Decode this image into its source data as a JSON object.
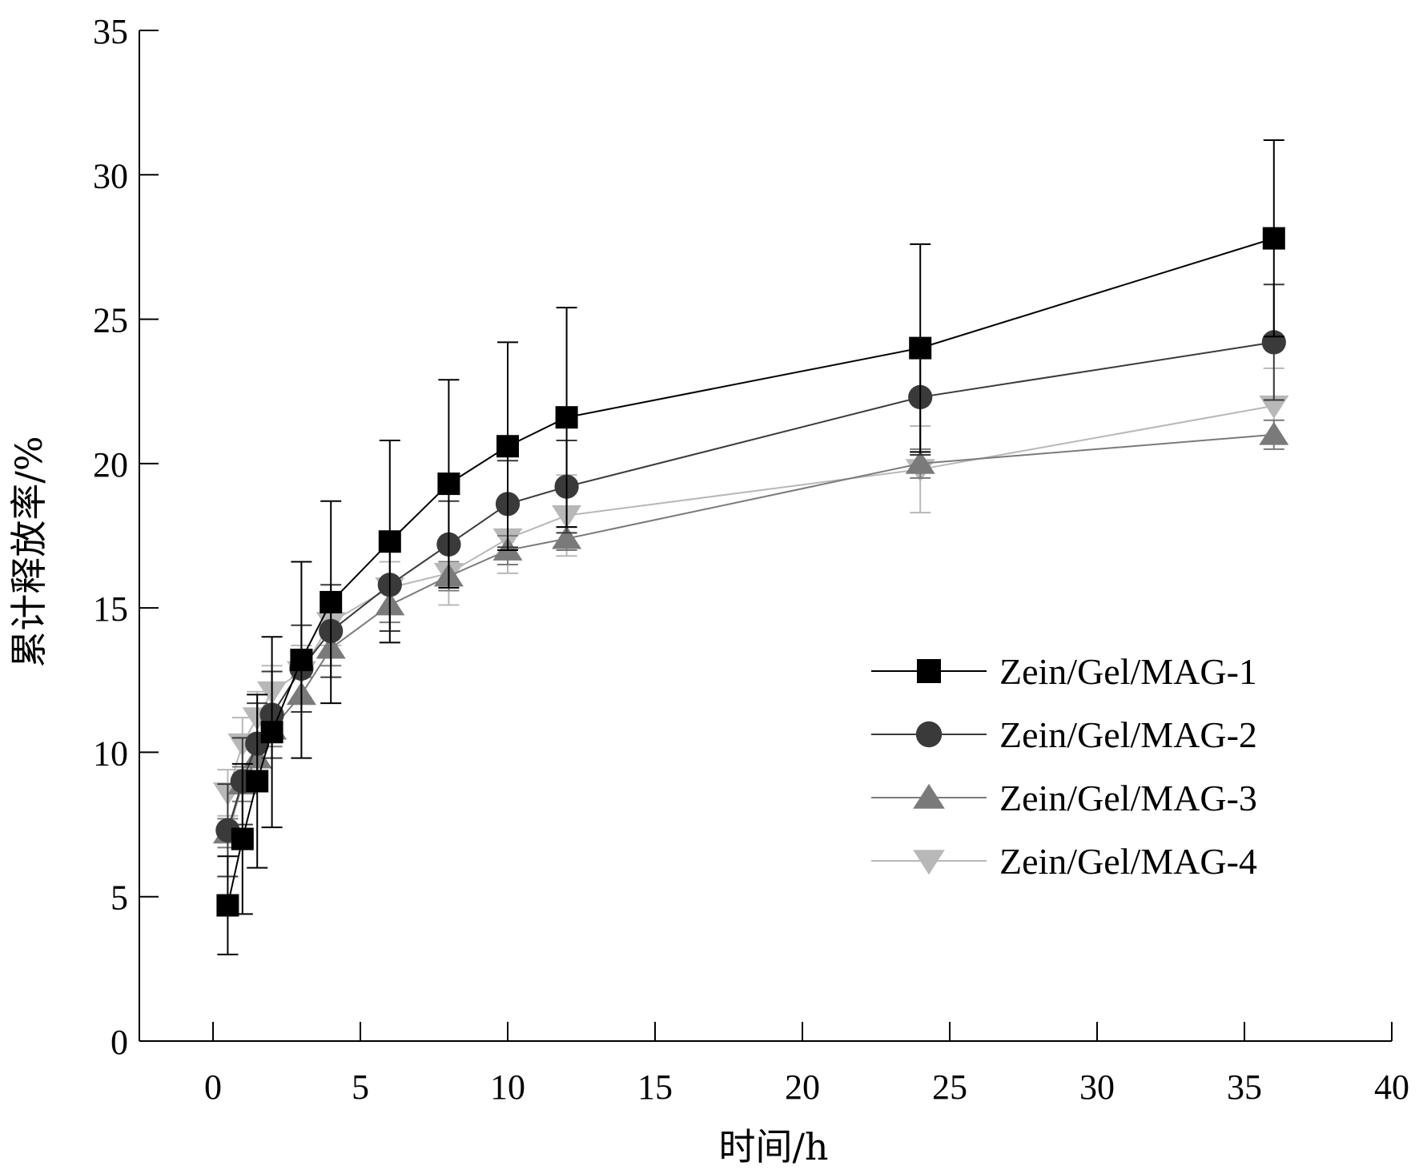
{
  "chart_data": {
    "type": "line",
    "title": "",
    "xlabel": "时间/h",
    "ylabel": "累计释放率/%",
    "xlim": [
      -2.5,
      40
    ],
    "ylim": [
      0,
      35
    ],
    "xticks": [
      0,
      5,
      10,
      15,
      20,
      25,
      30,
      35,
      40
    ],
    "yticks": [
      0,
      5,
      10,
      15,
      20,
      25,
      30,
      35
    ],
    "grid": false,
    "legend_position": "right",
    "series": [
      {
        "name": "Zein/Gel/MAG-1",
        "marker": "square",
        "color": "#000000",
        "x": [
          0.5,
          1,
          1.5,
          2,
          3,
          4,
          6,
          8,
          10,
          12,
          24,
          36
        ],
        "y": [
          4.7,
          7.0,
          9.0,
          10.7,
          13.2,
          15.2,
          17.3,
          19.3,
          20.6,
          21.6,
          24.0,
          27.8
        ],
        "err": [
          1.7,
          2.6,
          3.0,
          3.3,
          3.4,
          3.5,
          3.5,
          3.6,
          3.6,
          3.8,
          3.6,
          3.4
        ]
      },
      {
        "name": "Zein/Gel/MAG-2",
        "marker": "circle",
        "color": "#3a3a3a",
        "x": [
          0.5,
          1,
          1.5,
          2,
          3,
          4,
          6,
          8,
          10,
          12,
          24,
          36
        ],
        "y": [
          7.3,
          9.0,
          10.3,
          11.3,
          12.9,
          14.2,
          15.8,
          17.2,
          18.6,
          19.2,
          22.3,
          24.2
        ],
        "err": [
          1.6,
          1.5,
          1.4,
          1.5,
          1.5,
          1.6,
          1.6,
          1.5,
          1.5,
          1.6,
          2.0,
          2.0
        ]
      },
      {
        "name": "Zein/Gel/MAG-3",
        "marker": "triangle-up",
        "color": "#7a7a7a",
        "x": [
          0.5,
          1,
          1.5,
          2,
          3,
          4,
          6,
          8,
          10,
          12,
          24,
          36
        ],
        "y": [
          7.2,
          8.9,
          9.8,
          10.8,
          12.0,
          13.6,
          15.1,
          16.1,
          17.0,
          17.4,
          20.0,
          21.0
        ],
        "err": [
          0.5,
          0.6,
          0.7,
          0.6,
          0.6,
          0.6,
          0.6,
          0.5,
          0.5,
          0.4,
          0.5,
          0.5
        ]
      },
      {
        "name": "Zein/Gel/MAG-4",
        "marker": "triangle-down",
        "color": "#b8b8b8",
        "x": [
          0.5,
          1,
          1.5,
          2,
          3,
          4,
          6,
          8,
          10,
          12,
          24,
          36
        ],
        "y": [
          8.6,
          10.3,
          11.2,
          12.1,
          12.8,
          14.5,
          15.7,
          16.2,
          17.4,
          18.2,
          19.8,
          22.0
        ],
        "err": [
          0.8,
          0.9,
          0.9,
          0.9,
          0.9,
          0.8,
          0.9,
          1.1,
          1.2,
          1.4,
          1.5,
          1.3
        ]
      }
    ]
  }
}
